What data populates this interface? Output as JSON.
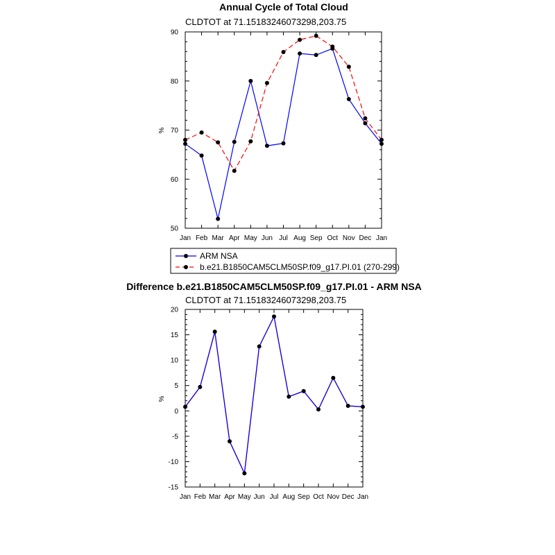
{
  "chart_data": [
    {
      "type": "line",
      "title": "Annual Cycle of Total Cloud",
      "subtitle": "CLDTOT at 71.15183246073298,203.75",
      "xlabel": "",
      "ylabel": "%",
      "categories": [
        "Jan",
        "Feb",
        "Mar",
        "Apr",
        "May",
        "Jun",
        "Jul",
        "Aug",
        "Sep",
        "Oct",
        "Nov",
        "Dec",
        "Jan"
      ],
      "ylim": [
        50,
        90
      ],
      "yticks": [
        50,
        60,
        70,
        80,
        90
      ],
      "series": [
        {
          "name": "ARM NSA",
          "color": "#0000ff",
          "dash": "solid",
          "values": [
            67.2,
            64.8,
            51.9,
            67.6,
            80.0,
            66.8,
            67.3,
            85.6,
            85.3,
            86.6,
            76.3,
            71.4,
            67.2
          ]
        },
        {
          "name": "b.e21.B1850CAM5CLM50SP.f09_g17.PI.01 (270-299)",
          "color": "#ff0000",
          "dash": "dashed",
          "values": [
            68.0,
            69.5,
            67.5,
            61.7,
            67.7,
            79.6,
            85.9,
            88.4,
            89.2,
            87.0,
            82.9,
            72.4,
            68.0
          ]
        }
      ],
      "legend_location": "below"
    },
    {
      "type": "line",
      "title": "Difference b.e21.B1850CAM5CLM50SP.f09_g17.PI.01 - ARM NSA",
      "subtitle": "CLDTOT at 71.15183246073298,203.75",
      "xlabel": "",
      "ylabel": "%",
      "categories": [
        "Jan",
        "Feb",
        "Mar",
        "Apr",
        "May",
        "Jun",
        "Jul",
        "Aug",
        "Sep",
        "Oct",
        "Nov",
        "Dec",
        "Jan"
      ],
      "ylim": [
        -15,
        20
      ],
      "yticks": [
        -15,
        -10,
        -5,
        0,
        5,
        10,
        15,
        20
      ],
      "series": [
        {
          "name": "Difference",
          "color": "#0000ff",
          "overlay_color": "#ff0000",
          "values": [
            0.8,
            4.7,
            15.6,
            -6.0,
            -12.3,
            12.7,
            18.6,
            2.8,
            3.9,
            0.3,
            6.5,
            1.0,
            0.8
          ]
        }
      ]
    }
  ]
}
